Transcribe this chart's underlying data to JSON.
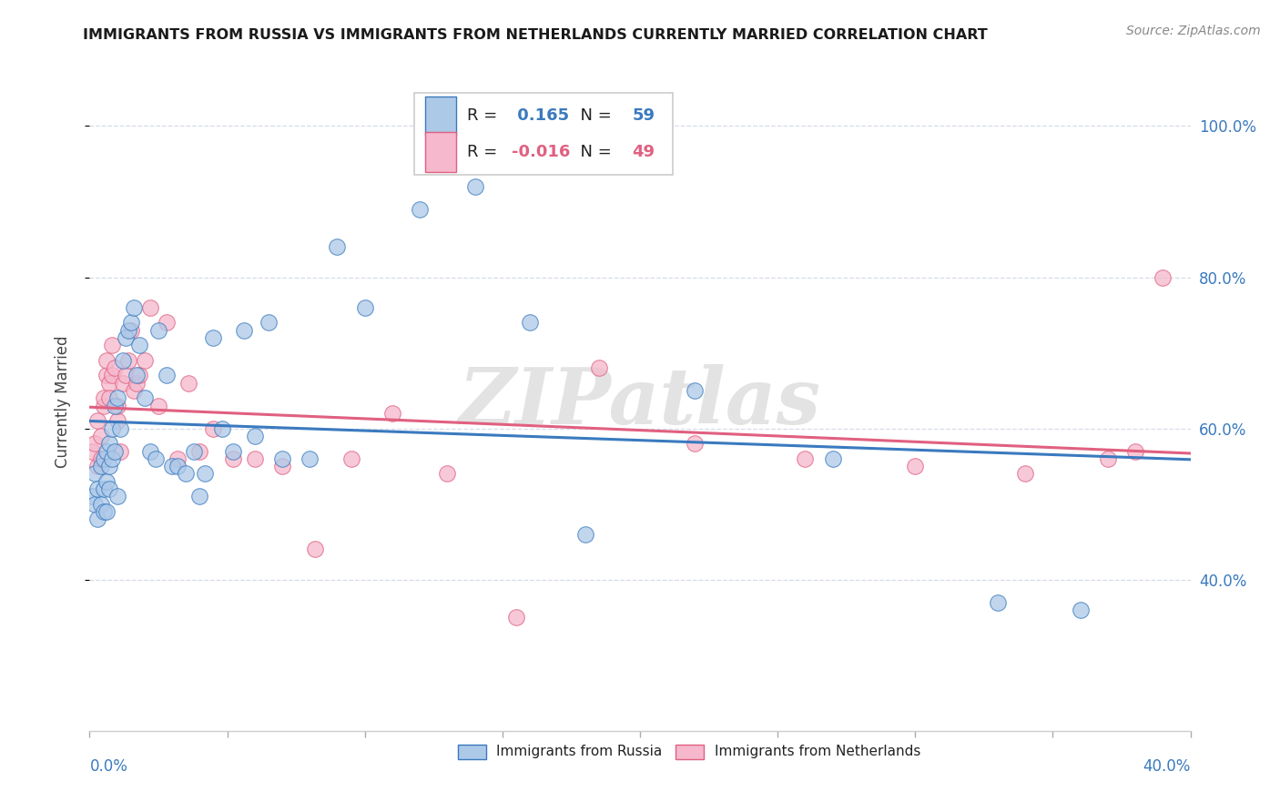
{
  "title": "IMMIGRANTS FROM RUSSIA VS IMMIGRANTS FROM NETHERLANDS CURRENTLY MARRIED CORRELATION CHART",
  "source": "Source: ZipAtlas.com",
  "ylabel": "Currently Married",
  "y_ticks": [
    0.4,
    0.6,
    0.8,
    1.0
  ],
  "y_tick_labels": [
    "40.0%",
    "60.0%",
    "80.0%",
    "100.0%"
  ],
  "x_range": [
    0.0,
    0.4
  ],
  "y_range": [
    0.2,
    1.07
  ],
  "russia_R": 0.165,
  "russia_N": 59,
  "netherlands_R": -0.016,
  "netherlands_N": 49,
  "russia_color": "#adc9e8",
  "netherlands_color": "#f5b8cc",
  "russia_line_color": "#3a7abf",
  "netherlands_line_color": "#e06080",
  "russia_x": [
    0.001,
    0.002,
    0.002,
    0.003,
    0.003,
    0.004,
    0.004,
    0.005,
    0.005,
    0.005,
    0.006,
    0.006,
    0.006,
    0.007,
    0.007,
    0.007,
    0.008,
    0.008,
    0.009,
    0.009,
    0.01,
    0.01,
    0.011,
    0.012,
    0.013,
    0.014,
    0.015,
    0.016,
    0.017,
    0.018,
    0.02,
    0.022,
    0.024,
    0.025,
    0.028,
    0.03,
    0.032,
    0.035,
    0.038,
    0.04,
    0.042,
    0.045,
    0.048,
    0.052,
    0.056,
    0.06,
    0.065,
    0.07,
    0.08,
    0.09,
    0.1,
    0.12,
    0.14,
    0.16,
    0.18,
    0.22,
    0.27,
    0.33,
    0.36
  ],
  "russia_y": [
    0.51,
    0.54,
    0.5,
    0.52,
    0.48,
    0.55,
    0.5,
    0.56,
    0.49,
    0.52,
    0.57,
    0.53,
    0.49,
    0.58,
    0.55,
    0.52,
    0.6,
    0.56,
    0.63,
    0.57,
    0.51,
    0.64,
    0.6,
    0.69,
    0.72,
    0.73,
    0.74,
    0.76,
    0.67,
    0.71,
    0.64,
    0.57,
    0.56,
    0.73,
    0.67,
    0.55,
    0.55,
    0.54,
    0.57,
    0.51,
    0.54,
    0.72,
    0.6,
    0.57,
    0.73,
    0.59,
    0.74,
    0.56,
    0.56,
    0.84,
    0.76,
    0.89,
    0.92,
    0.74,
    0.46,
    0.65,
    0.56,
    0.37,
    0.36
  ],
  "netherlands_x": [
    0.001,
    0.002,
    0.003,
    0.003,
    0.004,
    0.004,
    0.005,
    0.005,
    0.006,
    0.006,
    0.007,
    0.007,
    0.008,
    0.008,
    0.009,
    0.01,
    0.01,
    0.011,
    0.012,
    0.013,
    0.014,
    0.015,
    0.016,
    0.017,
    0.018,
    0.02,
    0.022,
    0.025,
    0.028,
    0.032,
    0.036,
    0.04,
    0.045,
    0.052,
    0.06,
    0.07,
    0.082,
    0.095,
    0.11,
    0.13,
    0.155,
    0.185,
    0.22,
    0.26,
    0.3,
    0.34,
    0.37,
    0.38,
    0.39
  ],
  "netherlands_y": [
    0.57,
    0.58,
    0.55,
    0.61,
    0.59,
    0.56,
    0.63,
    0.64,
    0.67,
    0.69,
    0.66,
    0.64,
    0.71,
    0.67,
    0.68,
    0.61,
    0.63,
    0.57,
    0.66,
    0.67,
    0.69,
    0.73,
    0.65,
    0.66,
    0.67,
    0.69,
    0.76,
    0.63,
    0.74,
    0.56,
    0.66,
    0.57,
    0.6,
    0.56,
    0.56,
    0.55,
    0.44,
    0.56,
    0.62,
    0.54,
    0.35,
    0.68,
    0.58,
    0.56,
    0.55,
    0.54,
    0.56,
    0.57,
    0.8
  ],
  "watermark_text": "ZIPatlas",
  "legend_text_color": "#222222",
  "russia_value_color": "#3a7abf",
  "netherlands_value_color": "#e06080",
  "grid_color": "#d5dce8",
  "spine_color": "#cccccc",
  "tick_color": "#aaaaaa"
}
